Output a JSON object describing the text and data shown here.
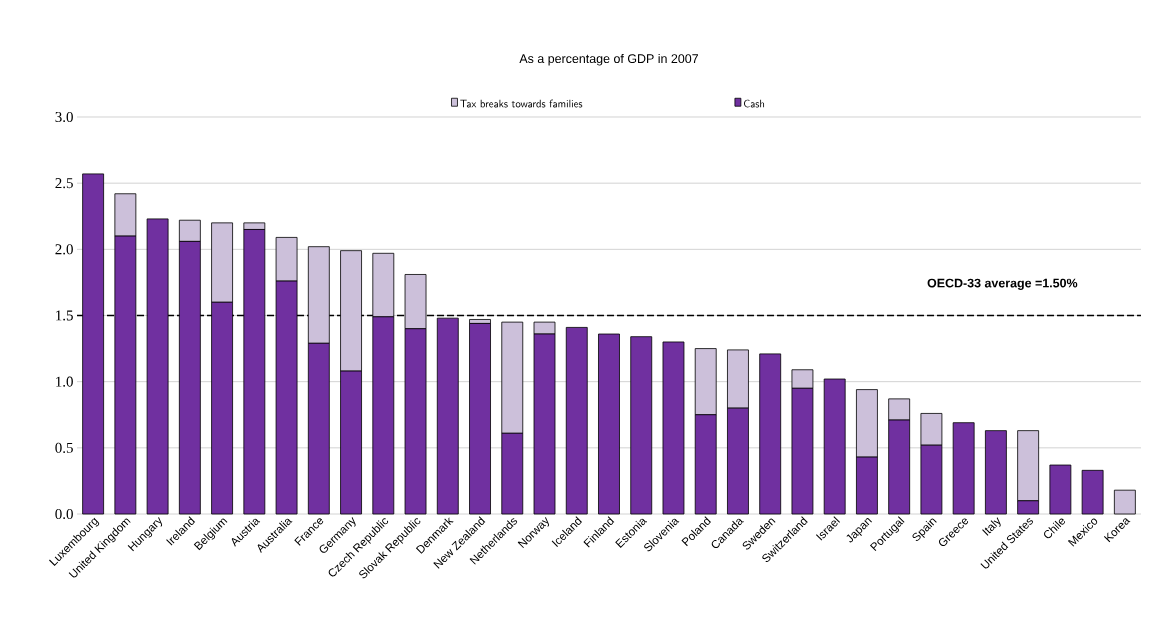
{
  "chart_data": {
    "type": "bar",
    "title": "As a percentage of GDP in 2007",
    "stacked": true,
    "categories": [
      "Luxembourg",
      "United Kingdom",
      "Hungary",
      "Ireland",
      "Belgium",
      "Austria",
      "Australia",
      "France",
      "Germany",
      "Czech Republic",
      "Slovak Republic",
      "Denmark",
      "New Zealand",
      "Netherlands",
      "Norway",
      "Iceland",
      "Finland",
      "Estonia",
      "Slovenia",
      "Poland",
      "Canada",
      "Sweden",
      "Switzerland",
      "Israel",
      "Japan",
      "Portugal",
      "Spain",
      "Greece",
      "Italy",
      "United States",
      "Chile",
      "Mexico",
      "Korea"
    ],
    "series": [
      {
        "name": "Cash",
        "color": "#7030a0",
        "values": [
          2.57,
          2.1,
          2.23,
          2.06,
          1.6,
          2.15,
          1.76,
          1.29,
          1.08,
          1.49,
          1.4,
          1.48,
          1.44,
          0.61,
          1.36,
          1.41,
          1.36,
          1.34,
          1.3,
          0.75,
          0.8,
          1.21,
          0.95,
          1.02,
          0.43,
          0.71,
          0.52,
          0.69,
          0.63,
          0.1,
          0.37,
          0.33,
          0
        ]
      },
      {
        "name": "Tax breaks towards families",
        "color": "#ccc0da",
        "values": [
          0,
          0.32,
          0,
          0.16,
          0.6,
          0.05,
          0.33,
          0.73,
          0.91,
          0.48,
          0.41,
          0,
          0.03,
          0.84,
          0.09,
          0,
          0,
          0,
          0,
          0.5,
          0.44,
          0,
          0.14,
          0,
          0.51,
          0.16,
          0.24,
          0,
          0,
          0.53,
          0,
          0,
          0.18
        ]
      }
    ],
    "ylim": [
      0,
      3.0
    ],
    "yticks": [
      {
        "value": 0,
        "label": "0.0"
      },
      {
        "value": 0.5,
        "label": "0.5"
      },
      {
        "value": 1,
        "label": "1.0"
      },
      {
        "value": 1.5,
        "label": "1.5"
      },
      {
        "value": 2,
        "label": "2.0"
      },
      {
        "value": 2.5,
        "label": "2.5"
      },
      {
        "value": 3,
        "label": "3.0"
      }
    ],
    "grid": "y",
    "legend": "top",
    "ref_lines": [
      {
        "axis": "y",
        "value": 1.5,
        "label": "OECD-33 average =1.50%",
        "color": "#000000",
        "line_style": "dashed"
      }
    ]
  }
}
